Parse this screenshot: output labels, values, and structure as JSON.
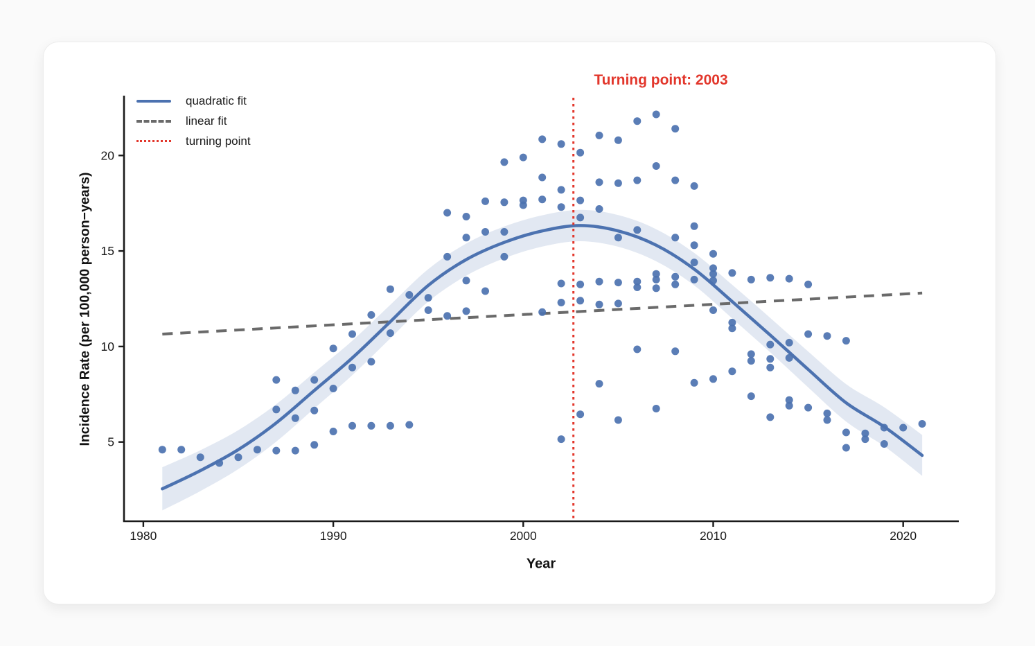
{
  "chart_data": {
    "type": "scatter",
    "annotation": "Turning point: 2003",
    "xlabel": "Year",
    "ylabel": "Incidence Rate (per 100,000 person−years)",
    "x_ticks": [
      1980,
      1990,
      2000,
      2010,
      2020
    ],
    "y_ticks": [
      5,
      10,
      15,
      20
    ],
    "xlim": [
      1979,
      2023.5
    ],
    "ylim": [
      0.8,
      23.2
    ],
    "grid": false,
    "legend_position": "upper-left",
    "legend": [
      {
        "label": "quadratic fit",
        "style": "solid",
        "color": "#4c72b0"
      },
      {
        "label": "linear fit",
        "style": "dashed",
        "color": "#6a6a6a"
      },
      {
        "label": "turning point",
        "style": "dotted",
        "color": "#e2362b"
      }
    ],
    "turning_point": {
      "year": 2002.64,
      "label_year": 2003
    },
    "linear_fit": {
      "x": [
        1981,
        2021
      ],
      "y": [
        10.65,
        12.8
      ]
    },
    "quadratic_curve": [
      [
        1981,
        2.55
      ],
      [
        1983,
        3.5
      ],
      [
        1985,
        4.6
      ],
      [
        1987,
        6.0
      ],
      [
        1989,
        7.7
      ],
      [
        1991,
        9.4
      ],
      [
        1993,
        11.3
      ],
      [
        1995,
        13.2
      ],
      [
        1997,
        14.55
      ],
      [
        1999,
        15.45
      ],
      [
        2001,
        16.05
      ],
      [
        2003,
        16.33
      ],
      [
        2005,
        16.05
      ],
      [
        2007,
        15.3
      ],
      [
        2009,
        14.05
      ],
      [
        2011,
        12.35
      ],
      [
        2013,
        10.6
      ],
      [
        2015,
        8.8
      ],
      [
        2017,
        7.05
      ],
      [
        2019,
        5.8
      ],
      [
        2021,
        4.3
      ]
    ],
    "band_halfwidth": [
      1.13,
      1.07,
      1.02,
      0.98,
      0.94,
      0.9,
      0.88,
      0.85,
      0.84,
      0.83,
      0.82,
      0.82,
      0.83,
      0.84,
      0.85,
      0.88,
      0.9,
      0.94,
      0.98,
      1.02,
      1.07
    ],
    "scatter": [
      [
        1981,
        4.6
      ],
      [
        1982,
        4.6
      ],
      [
        1983,
        4.2
      ],
      [
        1984,
        3.9
      ],
      [
        1985,
        4.2
      ],
      [
        1986,
        4.6
      ],
      [
        1987,
        4.55
      ],
      [
        1987,
        6.7
      ],
      [
        1987,
        8.25
      ],
      [
        1988,
        4.55
      ],
      [
        1988,
        6.25
      ],
      [
        1988,
        7.7
      ],
      [
        1989,
        4.85
      ],
      [
        1989,
        6.65
      ],
      [
        1989,
        8.25
      ],
      [
        1990,
        5.55
      ],
      [
        1990,
        7.8
      ],
      [
        1990,
        9.9
      ],
      [
        1991,
        5.85
      ],
      [
        1991,
        8.9
      ],
      [
        1991,
        10.65
      ],
      [
        1992,
        5.85
      ],
      [
        1992,
        9.2
      ],
      [
        1992,
        11.65
      ],
      [
        1993,
        5.85
      ],
      [
        1993,
        10.7
      ],
      [
        1993,
        13.0
      ],
      [
        1994,
        5.9
      ],
      [
        1994,
        12.7
      ],
      [
        1995,
        11.9
      ],
      [
        1995,
        12.55
      ],
      [
        1996,
        11.6
      ],
      [
        1996,
        14.7
      ],
      [
        1996,
        17.0
      ],
      [
        1997,
        11.85
      ],
      [
        1997,
        13.45
      ],
      [
        1997,
        15.7
      ],
      [
        1997,
        16.8
      ],
      [
        1998,
        12.9
      ],
      [
        1998,
        16.0
      ],
      [
        1998,
        17.6
      ],
      [
        1999,
        14.7
      ],
      [
        1999,
        16.0
      ],
      [
        1999,
        17.55
      ],
      [
        1999,
        19.65
      ],
      [
        2000,
        17.4
      ],
      [
        2000,
        17.65
      ],
      [
        2000,
        19.9
      ],
      [
        2001,
        11.8
      ],
      [
        2001,
        17.7
      ],
      [
        2001,
        18.85
      ],
      [
        2001,
        20.85
      ],
      [
        2002,
        5.15
      ],
      [
        2002,
        12.3
      ],
      [
        2002,
        13.3
      ],
      [
        2002,
        17.3
      ],
      [
        2002,
        18.2
      ],
      [
        2002,
        20.6
      ],
      [
        2003,
        6.45
      ],
      [
        2003,
        12.4
      ],
      [
        2003,
        13.25
      ],
      [
        2003,
        16.75
      ],
      [
        2003,
        17.65
      ],
      [
        2003,
        20.15
      ],
      [
        2004,
        8.05
      ],
      [
        2004,
        12.2
      ],
      [
        2004,
        13.4
      ],
      [
        2004,
        17.2
      ],
      [
        2004,
        18.6
      ],
      [
        2004,
        21.05
      ],
      [
        2005,
        6.15
      ],
      [
        2005,
        12.25
      ],
      [
        2005,
        13.35
      ],
      [
        2005,
        15.7
      ],
      [
        2005,
        18.55
      ],
      [
        2005,
        20.8
      ],
      [
        2006,
        9.85
      ],
      [
        2006,
        13.1
      ],
      [
        2006,
        13.4
      ],
      [
        2006,
        16.1
      ],
      [
        2006,
        18.7
      ],
      [
        2006,
        21.8
      ],
      [
        2007,
        6.75
      ],
      [
        2007,
        13.05
      ],
      [
        2007,
        13.5
      ],
      [
        2007,
        13.8
      ],
      [
        2007,
        19.45
      ],
      [
        2007,
        22.15
      ],
      [
        2008,
        9.75
      ],
      [
        2008,
        13.25
      ],
      [
        2008,
        13.65
      ],
      [
        2008,
        15.7
      ],
      [
        2008,
        18.7
      ],
      [
        2008,
        21.4
      ],
      [
        2009,
        8.1
      ],
      [
        2009,
        13.5
      ],
      [
        2009,
        14.4
      ],
      [
        2009,
        15.3
      ],
      [
        2009,
        16.3
      ],
      [
        2009,
        18.4
      ],
      [
        2010,
        8.3
      ],
      [
        2010,
        11.9
      ],
      [
        2010,
        13.45
      ],
      [
        2010,
        13.8
      ],
      [
        2010,
        14.1
      ],
      [
        2010,
        14.85
      ],
      [
        2011,
        8.7
      ],
      [
        2011,
        10.95
      ],
      [
        2011,
        11.25
      ],
      [
        2011,
        13.85
      ],
      [
        2012,
        7.4
      ],
      [
        2012,
        9.25
      ],
      [
        2012,
        9.6
      ],
      [
        2012,
        13.5
      ],
      [
        2013,
        6.3
      ],
      [
        2013,
        8.9
      ],
      [
        2013,
        9.35
      ],
      [
        2013,
        10.1
      ],
      [
        2013,
        13.6
      ],
      [
        2014,
        6.9
      ],
      [
        2014,
        7.2
      ],
      [
        2014,
        9.4
      ],
      [
        2014,
        10.2
      ],
      [
        2014,
        13.55
      ],
      [
        2015,
        6.8
      ],
      [
        2015,
        10.65
      ],
      [
        2015,
        13.25
      ],
      [
        2016,
        6.15
      ],
      [
        2016,
        6.5
      ],
      [
        2016,
        10.55
      ],
      [
        2017,
        4.7
      ],
      [
        2017,
        5.5
      ],
      [
        2017,
        10.3
      ],
      [
        2018,
        5.15
      ],
      [
        2018,
        5.45
      ],
      [
        2019,
        4.9
      ],
      [
        2019,
        5.75
      ],
      [
        2020,
        5.75
      ],
      [
        2021,
        5.95
      ]
    ]
  },
  "colors": {
    "blue": "#4c72b0",
    "band": "rgba(76,114,176,0.16)",
    "gray": "#6a6a6a",
    "red": "#e2362b",
    "axis": "#1a1a1a",
    "page_bg": "#fafafa",
    "card_bg": "#ffffff"
  }
}
